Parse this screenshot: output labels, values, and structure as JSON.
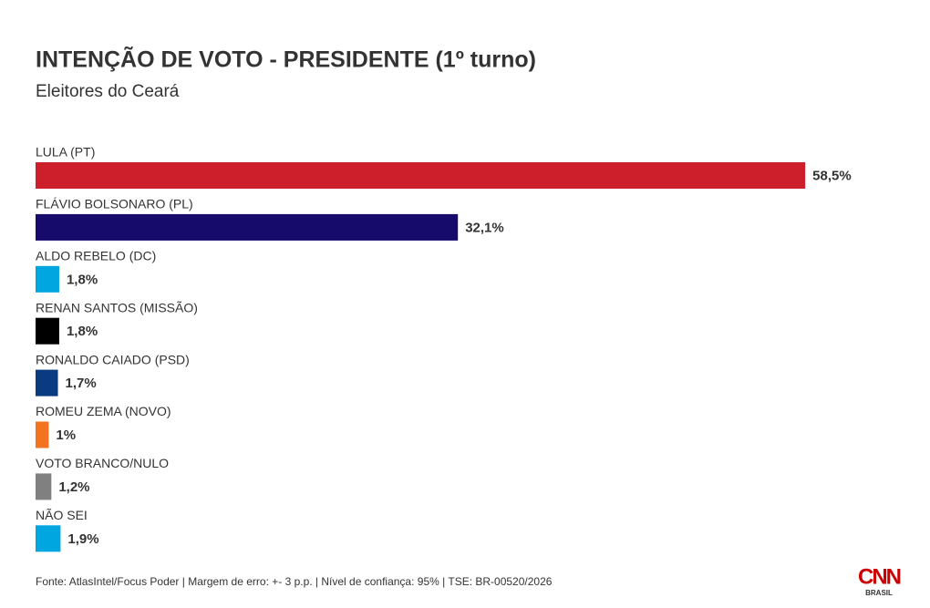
{
  "chart_data": {
    "type": "bar",
    "orientation": "horizontal",
    "title": "INTENÇÃO DE VOTO - PRESIDENTE (1º turno)",
    "subtitle": "Eleitores do Ceará",
    "categories": [
      "LULA (PT)",
      "FLÁVIO BOLSONARO (PL)",
      "ALDO REBELO (DC)",
      "RENAN SANTOS (MISSÃO)",
      "RONALDO CAIADO (PSD)",
      "ROMEU ZEMA (NOVO)",
      "VOTO BRANCO/NULO",
      "NÃO SEI"
    ],
    "values": [
      58.5,
      32.1,
      1.8,
      1.8,
      1.7,
      1,
      1.2,
      1.9
    ],
    "value_labels": [
      "58,5%",
      "32,1%",
      "1,8%",
      "1,8%",
      "1,7%",
      "1%",
      "1,2%",
      "1,9%"
    ],
    "colors": [
      "#cc1f2b",
      "#160b6b",
      "#00a6e0",
      "#000000",
      "#0a3a80",
      "#f47321",
      "#808080",
      "#00a6e0"
    ],
    "source": "Fonte: AtlasIntel/Focus Poder | Margem de erro: +- 3 p.p. | Nível de confiança: 95% | TSE: BR-00520/2026"
  },
  "logo": {
    "text": "CNN",
    "subtext": "BRASIL"
  }
}
